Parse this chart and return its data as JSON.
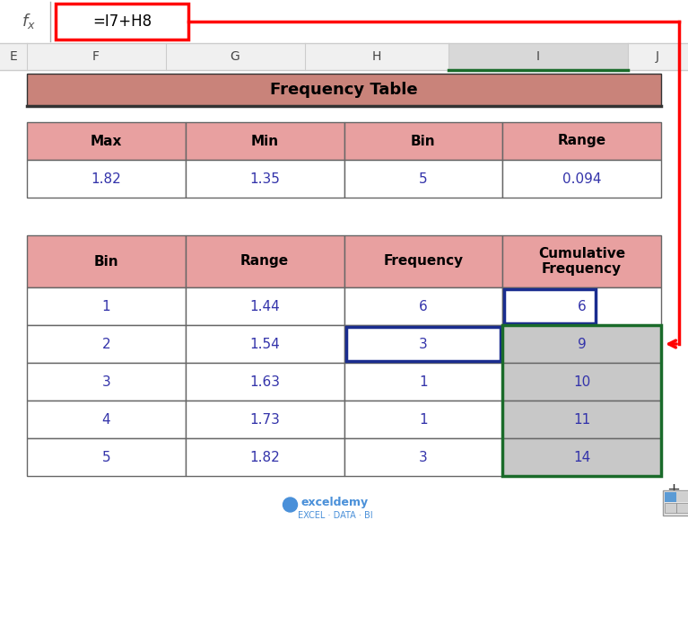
{
  "bg_color": "#ffffff",
  "formula_text": "=I7+H8",
  "col_headers": [
    "E",
    "F",
    "G",
    "H",
    "I",
    "J"
  ],
  "title_text": "Frequency Table",
  "title_bg": "#c9837a",
  "header_bg": "#e8a0a0",
  "top_table_headers": [
    "Max",
    "Min",
    "Bin",
    "Range"
  ],
  "top_table_values": [
    "1.82",
    "1.35",
    "5",
    "0.094"
  ],
  "main_headers": [
    "Bin",
    "Range",
    "Frequency",
    "Cumulative\nFrequency"
  ],
  "main_rows": [
    [
      "1",
      "1.44",
      "6",
      "6"
    ],
    [
      "2",
      "1.54",
      "3",
      "9"
    ],
    [
      "3",
      "1.63",
      "1",
      "10"
    ],
    [
      "4",
      "1.73",
      "1",
      "11"
    ],
    [
      "5",
      "1.82",
      "3",
      "14"
    ]
  ],
  "cum_freq_gray_rows": [
    1,
    2,
    3,
    4
  ],
  "cum_freq_gray_color": "#c8c8c8",
  "data_text_color": "#3333aa",
  "green_color": "#1a6b2a",
  "blue_color": "#1a2d8f",
  "red_color": "#ff0000",
  "watermark_color": "#4a90d9"
}
